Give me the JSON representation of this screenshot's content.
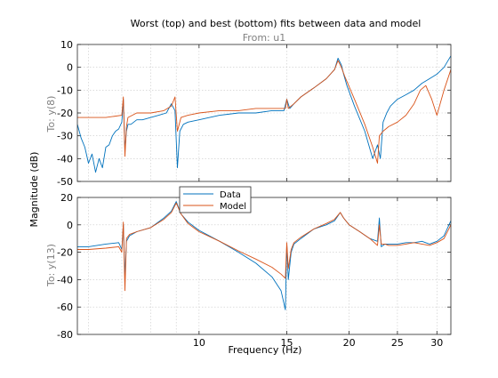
{
  "chart_data": {
    "type": "line",
    "title": "Worst (top) and best (bottom) fits between data and model",
    "subtitle": "From: u1",
    "xlabel": "Frequency  (Hz)",
    "ylabel": "Magnitude (dB)",
    "xscale": "log",
    "xlim": [
      5.7,
      32
    ],
    "grid": true,
    "legend_placement": "top-left of bottom panel",
    "x_tick_labels": [
      {
        "value": 10,
        "label": "10"
      },
      {
        "value": 15,
        "label": "15"
      },
      {
        "value": 20,
        "label": "20"
      },
      {
        "value": 25,
        "label": "25"
      },
      {
        "value": 30,
        "label": "30"
      }
    ],
    "legend": [
      {
        "name": "Data",
        "color": "#0072bd"
      },
      {
        "name": "Model",
        "color": "#d95319"
      }
    ],
    "panels": [
      {
        "id": "top",
        "ylabel": "To: y(8)",
        "ylim": [
          -50,
          10
        ],
        "yticks": [
          10,
          0,
          -10,
          -20,
          -30,
          -40,
          -50
        ],
        "series": [
          {
            "name": "Data",
            "color": "#0072bd",
            "x": [
              5.7,
              5.8,
              5.9,
              6.0,
              6.1,
              6.2,
              6.3,
              6.4,
              6.5,
              6.6,
              6.7,
              6.8,
              6.9,
              7.0,
              7.05,
              7.1,
              7.15,
              7.2,
              7.3,
              7.5,
              7.7,
              8.0,
              8.3,
              8.6,
              8.8,
              8.95,
              9.05,
              9.15,
              9.3,
              9.5,
              10,
              11,
              12,
              13,
              14,
              14.8,
              15.0,
              15.2,
              15.5,
              16,
              17,
              18,
              18.7,
              19.0,
              19.3,
              19.5,
              19.8,
              20.5,
              21.5,
              22.3,
              22.8,
              23.1,
              23.4,
              23.8,
              24.2,
              25,
              26,
              27,
              28,
              29,
              30,
              31,
              32
            ],
            "y": [
              -25,
              -31,
              -35,
              -42,
              -38,
              -46,
              -40,
              -44,
              -35,
              -34,
              -30,
              -28,
              -27,
              -24,
              -14,
              -36,
              -28,
              -25,
              -25,
              -23,
              -23,
              -22,
              -21,
              -20,
              -16,
              -19,
              -44,
              -28,
              -25,
              -24,
              -23,
              -21,
              -20,
              -20,
              -19,
              -19,
              -14,
              -18,
              -16,
              -13,
              -9,
              -5,
              -1,
              4,
              1,
              -3,
              -8,
              -17,
              -28,
              -40,
              -34,
              -40,
              -24,
              -20,
              -17,
              -14,
              -12,
              -10,
              -7,
              -5,
              -3,
              0,
              5
            ]
          },
          {
            "name": "Model",
            "color": "#d95319",
            "x": [
              5.7,
              6.0,
              6.5,
              7.0,
              7.05,
              7.1,
              7.15,
              7.2,
              7.5,
              8.0,
              8.5,
              8.8,
              8.95,
              9.05,
              9.2,
              9.5,
              10,
              11,
              12,
              13,
              14,
              14.9,
              15.0,
              15.1,
              15.5,
              16,
              17,
              18,
              18.7,
              19.0,
              19.3,
              19.6,
              20.5,
              21.5,
              22.3,
              22.8,
              23.0,
              23.4,
              24,
              25,
              26,
              27,
              27.8,
              28.5,
              29.3,
              30,
              31,
              32
            ],
            "y": [
              -22,
              -22,
              -22,
              -21,
              -13,
              -39,
              -26,
              -22,
              -20,
              -20,
              -19,
              -17,
              -13,
              -28,
              -22,
              -21,
              -20,
              -19,
              -19,
              -18,
              -18,
              -18,
              -14,
              -18,
              -16,
              -13,
              -9,
              -5,
              -1,
              3,
              0,
              -4,
              -14,
              -25,
              -35,
              -42,
              -30,
              -28,
              -26,
              -24,
              -21,
              -16,
              -10,
              -8,
              -14,
              -21,
              -10,
              -1
            ]
          }
        ]
      },
      {
        "id": "bottom",
        "ylabel": "To: y(13)",
        "ylim": [
          -80,
          20
        ],
        "yticks": [
          20,
          0,
          -20,
          -40,
          -60,
          -80
        ],
        "series": [
          {
            "name": "Data",
            "color": "#0072bd",
            "x": [
              5.7,
              6.0,
              6.5,
              6.9,
              7.0,
              7.05,
              7.1,
              7.15,
              7.25,
              7.5,
              8.0,
              8.5,
              8.8,
              9.0,
              9.2,
              9.5,
              10,
              11,
              12,
              13,
              14,
              14.6,
              14.9,
              15.0,
              15.1,
              15.3,
              15.5,
              16,
              17,
              18,
              18.7,
              19.2,
              19.5,
              20,
              21,
              22,
              22.8,
              23.0,
              23.2,
              23.6,
              24,
              25,
              26,
              27,
              28,
              29,
              30,
              31,
              32
            ],
            "y": [
              -16,
              -16,
              -14,
              -13,
              -18,
              0,
              -38,
              -12,
              -8,
              -5,
              -2,
              5,
              10,
              17,
              8,
              2,
              -4,
              -12,
              -20,
              -28,
              -38,
              -48,
              -62,
              -14,
              -40,
              -20,
              -14,
              -10,
              -3,
              0,
              3,
              9,
              5,
              0,
              -5,
              -10,
              -12,
              5,
              -16,
              -14,
              -14,
              -14,
              -13,
              -13,
              -12,
              -14,
              -12,
              -8,
              3
            ]
          },
          {
            "name": "Model",
            "color": "#d95319",
            "x": [
              5.7,
              6.0,
              6.5,
              6.9,
              7.0,
              7.05,
              7.1,
              7.15,
              7.25,
              7.5,
              8.0,
              8.5,
              8.8,
              9.0,
              9.2,
              9.5,
              10,
              11,
              12,
              13,
              14,
              14.6,
              14.9,
              15.0,
              15.1,
              15.3,
              15.5,
              16,
              17,
              18,
              18.7,
              19.2,
              19.5,
              20,
              21,
              22,
              22.8,
              23.0,
              23.2,
              23.6,
              24,
              25,
              26,
              27,
              28,
              29,
              30,
              31,
              32
            ],
            "y": [
              -18,
              -18,
              -17,
              -16,
              -20,
              2,
              -48,
              -10,
              -7,
              -5,
              -2,
              4,
              9,
              16,
              8,
              1,
              -5,
              -12,
              -19,
              -25,
              -31,
              -36,
              -39,
              -13,
              -32,
              -18,
              -13,
              -9,
              -3,
              1,
              4,
              9,
              5,
              0,
              -5,
              -10,
              -15,
              0,
              -14,
              -14,
              -15,
              -15,
              -14,
              -13,
              -14,
              -15,
              -13,
              -10,
              0
            ]
          }
        ]
      }
    ]
  }
}
